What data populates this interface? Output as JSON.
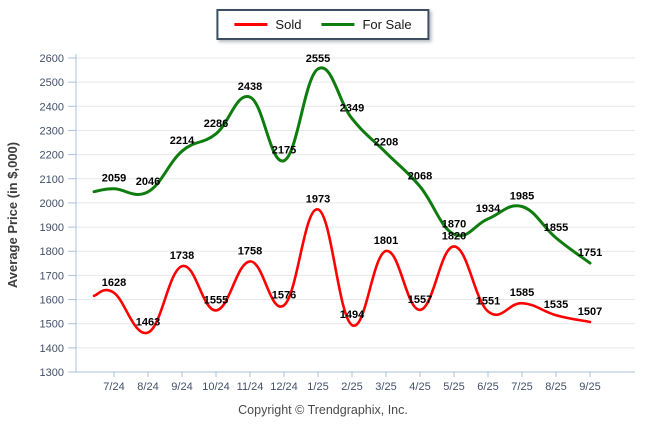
{
  "chart_data": {
    "type": "line",
    "title": "",
    "x": [
      "7/24",
      "8/24",
      "9/24",
      "10/24",
      "11/24",
      "12/24",
      "1/25",
      "2/25",
      "3/25",
      "4/25",
      "5/25",
      "6/25",
      "7/25",
      "8/25",
      "9/25"
    ],
    "series": [
      {
        "name": "Sold",
        "color": "#ff0000",
        "values": [
          1628,
          1463,
          1738,
          1555,
          1758,
          1576,
          1973,
          1494,
          1801,
          1557,
          1820,
          1551,
          1585,
          1535,
          1507
        ]
      },
      {
        "name": "For Sale",
        "color": "#0f7c0f",
        "values": [
          2059,
          2046,
          2214,
          2286,
          2438,
          2175,
          2555,
          2349,
          2208,
          2068,
          1870,
          1934,
          1985,
          1855,
          1751
        ]
      }
    ],
    "ylabel": "Average Price (in $,000)",
    "ylim": [
      1300,
      2600
    ],
    "ytick_step": 100,
    "grid": "horizontal",
    "legend_position": "top-center",
    "data_labels": true
  },
  "footer": {
    "copyright": "Copyright © Trendgraphix, Inc."
  }
}
